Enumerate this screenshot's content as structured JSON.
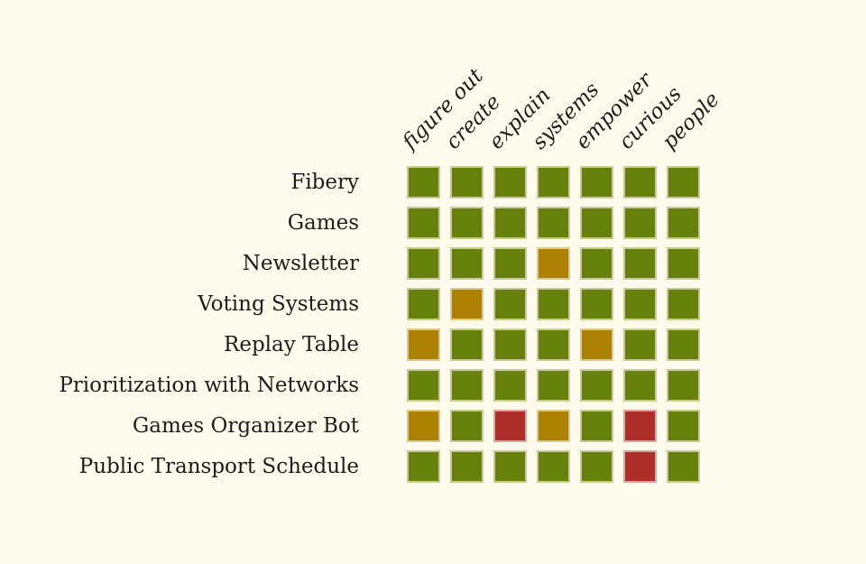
{
  "page": {
    "background": "#fefbec",
    "text_color": "#1c1c1c"
  },
  "chart_data": {
    "type": "heatmap",
    "title": "",
    "columns": [
      "figure out",
      "create",
      "explain",
      "systems",
      "empower",
      "curious",
      "people"
    ],
    "rows": [
      "Fibery",
      "Games",
      "Newsletter",
      "Voting Systems",
      "Replay Table",
      "Prioritization with Networks",
      "Games Organizer Bot",
      "Public Transport Schedule"
    ],
    "cells": [
      [
        "green",
        "green",
        "green",
        "green",
        "green",
        "green",
        "green"
      ],
      [
        "green",
        "green",
        "green",
        "green",
        "green",
        "green",
        "green"
      ],
      [
        "green",
        "green",
        "green",
        "yellow",
        "green",
        "green",
        "green"
      ],
      [
        "green",
        "yellow",
        "green",
        "green",
        "green",
        "green",
        "green"
      ],
      [
        "yellow",
        "green",
        "green",
        "green",
        "yellow",
        "green",
        "green"
      ],
      [
        "green",
        "green",
        "green",
        "green",
        "green",
        "green",
        "green"
      ],
      [
        "yellow",
        "green",
        "red",
        "yellow",
        "green",
        "red",
        "green"
      ],
      [
        "green",
        "green",
        "green",
        "green",
        "green",
        "red",
        "green"
      ]
    ],
    "cell_colors": {
      "green": {
        "fill": "#67810d",
        "border": "#c6cc92"
      },
      "yellow": {
        "fill": "#ad8204",
        "border": "#ddca8a"
      },
      "red": {
        "fill": "#ae2f29",
        "border": "#dfa49b"
      }
    },
    "layout_hints": {
      "column_labels_rotation_deg": -45,
      "column_labels_position": "top",
      "row_labels_position": "left",
      "grid": "off",
      "legend": "none"
    }
  }
}
